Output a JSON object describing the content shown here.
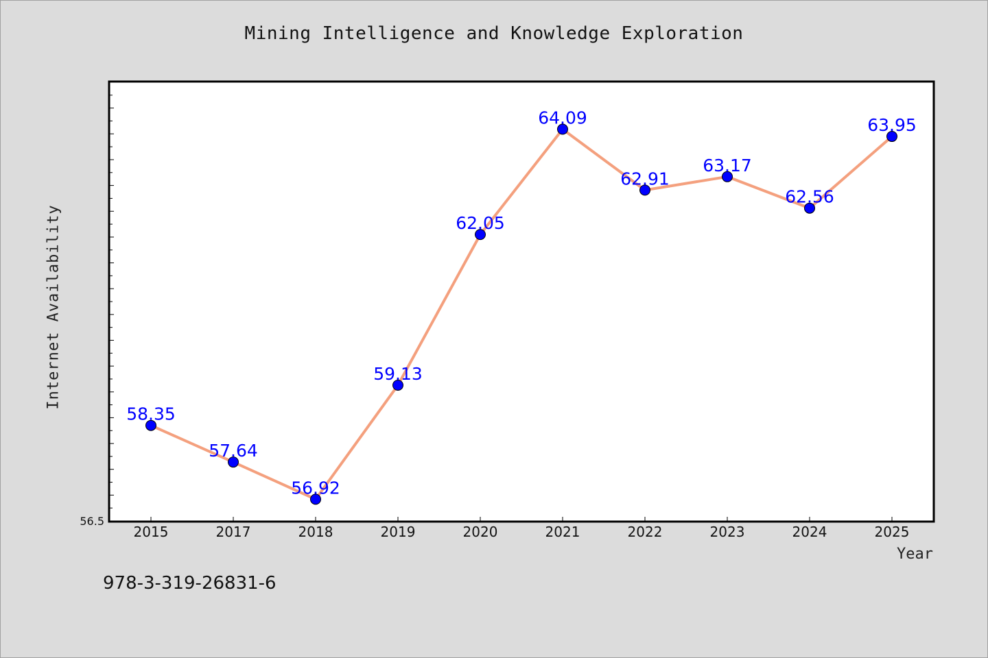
{
  "chart_data": {
    "type": "line",
    "title": "Mining Intelligence and Knowledge Exploration",
    "xlabel": "Year",
    "ylabel": "Internet Availability",
    "categories": [
      "2015",
      "2017",
      "2018",
      "2019",
      "2020",
      "2021",
      "2022",
      "2023",
      "2024",
      "2025"
    ],
    "series": [
      {
        "values": [
          58.35,
          57.64,
          56.92,
          59.13,
          62.05,
          64.09,
          62.91,
          63.17,
          62.56,
          63.95
        ]
      }
    ],
    "ylim": [
      56.5,
      65.0
    ],
    "y_axis_min_label": "56.5",
    "grid": false,
    "colors": {
      "line": "#f4a07e",
      "marker": "#0000ff",
      "label": "#0000ff",
      "plot_bg": "#ffffff",
      "page_bg": "#dcdcdc"
    }
  },
  "footer": {
    "isbn": "978-3-319-26831-6"
  }
}
